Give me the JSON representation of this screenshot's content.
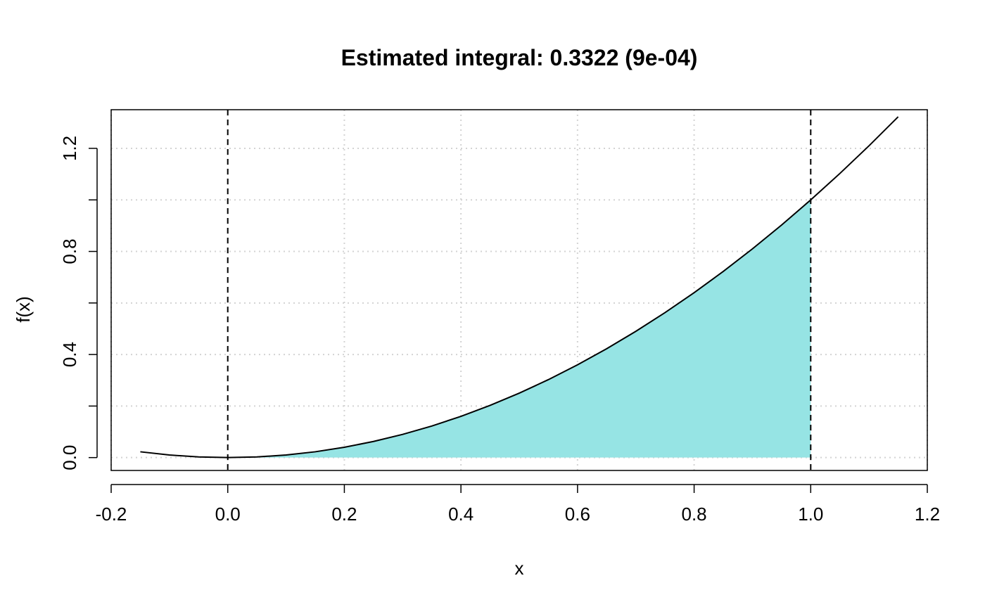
{
  "chart_data": {
    "type": "area",
    "title": "Estimated integral: 0.3322 (9e-04)",
    "xlabel": "x",
    "ylabel": "f(x)",
    "xlim": [
      -0.2,
      1.2
    ],
    "ylim": [
      -0.05,
      1.35
    ],
    "x_ticks": [
      "-0.2",
      "0.0",
      "0.2",
      "0.4",
      "0.6",
      "0.8",
      "1.0",
      "1.2"
    ],
    "y_ticks": [
      "0.0",
      "0.4",
      "0.8",
      "1.2"
    ],
    "y_minor_ticks": [
      0.2,
      0.6,
      1.0
    ],
    "grid": true,
    "function": "x^2",
    "curve": {
      "x": [
        -0.15,
        -0.1,
        -0.05,
        0.0,
        0.05,
        0.1,
        0.15,
        0.2,
        0.25,
        0.3,
        0.35,
        0.4,
        0.45,
        0.5,
        0.55,
        0.6,
        0.65,
        0.7,
        0.75,
        0.8,
        0.85,
        0.9,
        0.95,
        1.0,
        1.05,
        1.1,
        1.15
      ],
      "y": [
        0.0225,
        0.01,
        0.0025,
        0.0,
        0.0025,
        0.01,
        0.0225,
        0.04,
        0.0625,
        0.09,
        0.1225,
        0.16,
        0.2025,
        0.25,
        0.3025,
        0.36,
        0.4225,
        0.49,
        0.5625,
        0.64,
        0.7225,
        0.81,
        0.9025,
        1.0,
        1.1025,
        1.21,
        1.3225
      ]
    },
    "shaded_region": {
      "from": 0.0,
      "to": 1.0,
      "color": "#96e4e4"
    },
    "bounds_lines": [
      0.0,
      1.0
    ],
    "colors": {
      "curve": "#000000",
      "fill": "#96e4e4",
      "grid": "#d3d3d3",
      "bounds": "#000000"
    }
  }
}
